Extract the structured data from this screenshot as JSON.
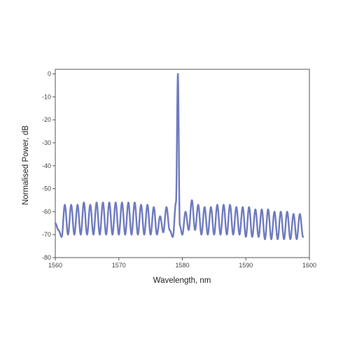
{
  "chart_data": {
    "type": "line",
    "title": "",
    "xlabel": "Wavelength, nm",
    "ylabel": "Normalised Power, dB",
    "xlim": [
      1560,
      1600
    ],
    "ylim": [
      -80,
      2
    ],
    "x_ticks": [
      1560,
      1570,
      1580,
      1590,
      1600
    ],
    "y_ticks": [
      0,
      -10,
      -20,
      -30,
      -40,
      -50,
      -60,
      -70,
      -80
    ],
    "x_tick_labels": [
      "1560",
      "1570",
      "1580",
      "1590",
      "1600"
    ],
    "y_tick_labels": [
      "0",
      "-10",
      "-20",
      "-30",
      "-40",
      "-50",
      "-60",
      "-70",
      "-80"
    ],
    "grid": false,
    "legend": "none",
    "line_color": "#6f7bbf",
    "baseline_db": -70,
    "series": [
      {
        "x": [
          1560.0,
          1560.5,
          1561.0,
          1561.5,
          1562.0,
          1562.5,
          1563.0,
          1563.5,
          1564.0,
          1564.5,
          1565.0,
          1565.5,
          1566.0,
          1566.5,
          1567.0,
          1567.5,
          1568.0,
          1568.5,
          1569.0,
          1569.5,
          1570.0,
          1570.5,
          1571.0,
          1571.5,
          1572.0,
          1572.5,
          1573.0,
          1573.5,
          1574.0,
          1574.5,
          1575.0,
          1575.5,
          1576.0,
          1576.5,
          1577.0,
          1577.5,
          1578.0,
          1578.5,
          1579.0,
          1579.3,
          1579.6,
          1580.0,
          1580.5,
          1581.0,
          1581.5,
          1582.0,
          1582.5,
          1583.0,
          1583.5,
          1584.0,
          1584.5,
          1585.0,
          1585.5,
          1586.0,
          1586.5,
          1587.0,
          1587.5,
          1588.0,
          1588.5,
          1589.0,
          1589.5,
          1590.0,
          1590.5,
          1591.0,
          1591.5,
          1592.0,
          1592.5,
          1593.0,
          1593.5,
          1594.0,
          1594.5,
          1595.0,
          1595.5,
          1596.0,
          1596.5,
          1597.0,
          1597.5,
          1598.0,
          1598.5,
          1599.0
        ],
        "y": [
          -65,
          -68,
          -71,
          -57,
          -70,
          -57,
          -70,
          -57,
          -70,
          -56,
          -70,
          -57,
          -70,
          -56,
          -70,
          -56,
          -70,
          -56,
          -70,
          -56,
          -70,
          -56,
          -70,
          -56,
          -70,
          -56,
          -70,
          -57,
          -70,
          -57,
          -70,
          -58,
          -70,
          -62,
          -69,
          -58,
          -68,
          -71,
          -56,
          0,
          -66,
          -70,
          -60,
          -68,
          -55,
          -68,
          -57,
          -70,
          -58,
          -70,
          -58,
          -70,
          -57,
          -70,
          -57,
          -70,
          -57,
          -70,
          -58,
          -70,
          -58,
          -71,
          -58,
          -71,
          -59,
          -71,
          -59,
          -72,
          -59,
          -72,
          -60,
          -72,
          -60,
          -72,
          -60,
          -72,
          -61,
          -72,
          -61,
          -71
        ]
      }
    ]
  }
}
